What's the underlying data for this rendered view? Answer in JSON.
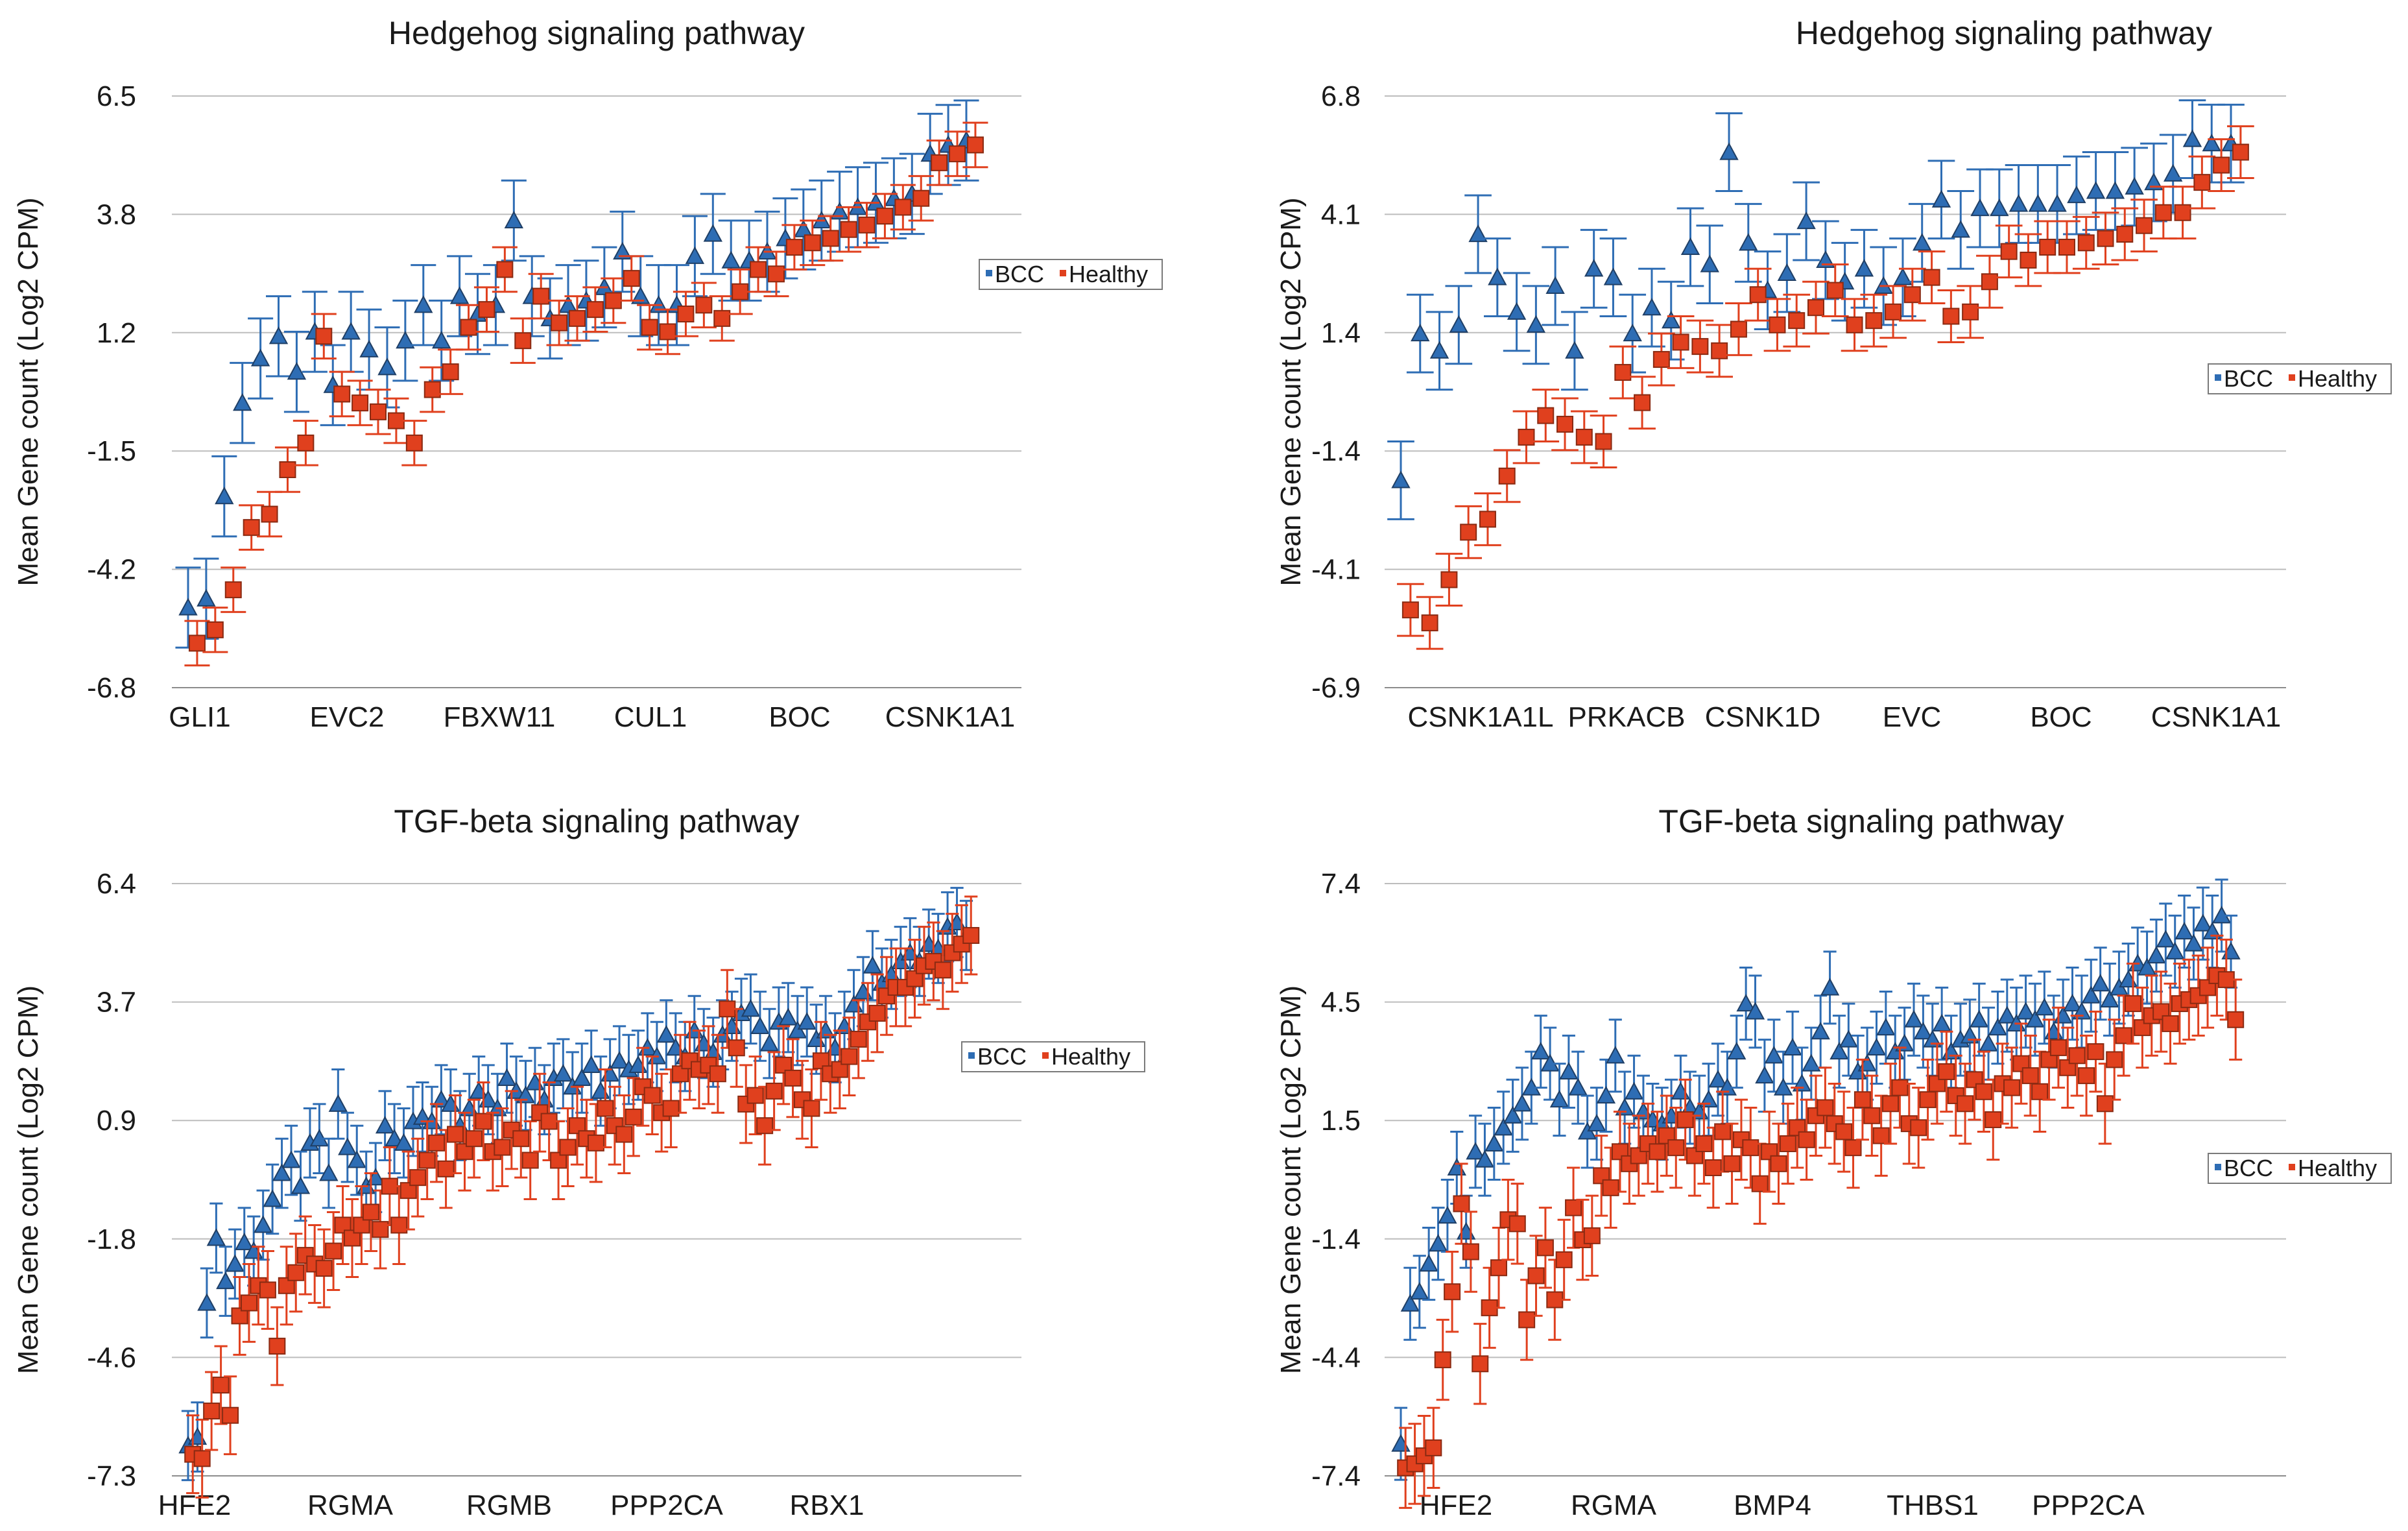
{
  "colors": {
    "bcc": "#2E6DB4",
    "healthy": "#E0401E",
    "grid": "#BDBDBD",
    "axis": "#8C8C8C",
    "text": "#1a1a1a"
  },
  "legend": {
    "bcc": "BCC",
    "healthy": "Healthy"
  },
  "chart_data": [
    {
      "type": "scatter",
      "title": "Hedgehog signaling pathway",
      "ylabel": "Mean Gene count (Log2 CPM)",
      "yticks": [
        "6.5",
        "3.8",
        "1.2",
        "-1.5",
        "-4.2",
        "-6.8"
      ],
      "ylim": [
        -6.8,
        6.5
      ],
      "xcategories": [
        "GLI1",
        "EVC2",
        "FBXW11",
        "CUL1",
        "BOC",
        "CSNK1A1"
      ],
      "legend_position": "right",
      "n": 44,
      "series": [
        {
          "name": "BCC",
          "marker": "triangle",
          "err": 0.9,
          "values": [
            -5.0,
            -4.8,
            -2.5,
            -0.4,
            0.6,
            1.1,
            0.3,
            1.2,
            0.0,
            1.2,
            0.8,
            0.4,
            1.0,
            1.8,
            1.0,
            2.0,
            1.6,
            1.8,
            3.7,
            2.0,
            1.5,
            1.8,
            1.9,
            2.2,
            3.0,
            2.0,
            1.8,
            1.8,
            2.9,
            3.4,
            2.8,
            2.8,
            3.0,
            3.3,
            3.5,
            3.7,
            3.9,
            4.0,
            4.1,
            4.2,
            4.3,
            5.2,
            5.4,
            5.5
          ]
        },
        {
          "name": "Healthy",
          "marker": "square",
          "err": 0.5,
          "values": [
            -5.8,
            -5.5,
            -4.6,
            -3.2,
            -2.9,
            -1.9,
            -1.3,
            1.1,
            -0.2,
            -0.4,
            -0.6,
            -0.8,
            -1.3,
            -0.1,
            0.3,
            1.3,
            1.7,
            2.6,
            1.0,
            2.0,
            1.4,
            1.5,
            1.7,
            1.9,
            2.4,
            1.3,
            1.2,
            1.6,
            1.8,
            1.5,
            2.1,
            2.6,
            2.5,
            3.1,
            3.2,
            3.3,
            3.5,
            3.6,
            3.8,
            4.0,
            4.2,
            5.0,
            5.2,
            5.4
          ]
        }
      ]
    },
    {
      "type": "scatter",
      "title": "Hedgehog signaling pathway",
      "ylabel": "Mean Gene count (Log2 CPM)",
      "yticks": [
        "6.8",
        "4.1",
        "1.4",
        "-1.4",
        "-4.1",
        "-6.9"
      ],
      "ylim": [
        -6.9,
        6.8
      ],
      "xcategories": [
        "CSNK1A1L",
        "PRKACB",
        "CSNK1D",
        "EVC",
        "BOC",
        "CSNK1A1"
      ],
      "legend_position": "right",
      "n": 44,
      "series": [
        {
          "name": "BCC",
          "marker": "triangle",
          "err": 0.9,
          "values": [
            -2.1,
            1.3,
            0.9,
            1.5,
            3.6,
            2.6,
            1.8,
            1.5,
            2.4,
            0.9,
            2.8,
            2.6,
            1.3,
            1.9,
            1.6,
            3.3,
            2.9,
            5.5,
            3.4,
            2.3,
            2.7,
            3.9,
            3.0,
            2.5,
            2.8,
            2.4,
            2.6,
            3.4,
            4.4,
            3.7,
            4.2,
            4.2,
            4.3,
            4.3,
            4.3,
            4.5,
            4.6,
            4.6,
            4.7,
            4.8,
            5.0,
            5.8,
            5.7,
            5.7
          ]
        },
        {
          "name": "Healthy",
          "marker": "square",
          "err": 0.6,
          "values": [
            -5.1,
            -5.4,
            -4.4,
            -3.3,
            -3.0,
            -2.0,
            -1.1,
            -0.6,
            -0.8,
            -1.1,
            -1.2,
            0.4,
            -0.3,
            0.7,
            1.1,
            1.0,
            0.9,
            1.4,
            2.2,
            1.5,
            1.6,
            1.9,
            2.3,
            1.5,
            1.6,
            1.8,
            2.2,
            2.6,
            1.7,
            1.8,
            2.5,
            3.2,
            3.0,
            3.3,
            3.3,
            3.4,
            3.5,
            3.6,
            3.8,
            4.1,
            4.1,
            4.8,
            5.2,
            5.5
          ]
        }
      ]
    },
    {
      "type": "scatter",
      "title": "TGF-beta signaling pathway",
      "ylabel": "Mean Gene count (Log2 CPM)",
      "yticks": [
        "6.4",
        "3.7",
        "0.9",
        "-1.8",
        "-4.6",
        "-7.3"
      ],
      "ylim": [
        -7.3,
        6.4
      ],
      "xcategories": [
        "HFE2",
        "RGMA",
        "RGMB",
        "PPP2CA",
        "RBX1"
      ],
      "legend_position": "right",
      "n": 84,
      "series": [
        {
          "name": "BCC",
          "marker": "triangle",
          "err": 0.8,
          "values": [
            -6.6,
            -6.4,
            -3.3,
            -1.8,
            -2.8,
            -2.4,
            -1.9,
            -2.1,
            -1.5,
            -0.9,
            -0.3,
            0.0,
            -0.6,
            0.4,
            0.5,
            -0.3,
            1.3,
            0.3,
            0.0,
            -0.6,
            -0.4,
            0.8,
            0.5,
            0.4,
            0.9,
            1.0,
            0.9,
            1.4,
            1.3,
            0.8,
            1.2,
            1.6,
            1.4,
            1.2,
            1.9,
            1.6,
            1.5,
            1.8,
            1.4,
            1.9,
            2.0,
            1.7,
            1.9,
            2.2,
            1.6,
            2.0,
            2.3,
            2.1,
            2.2,
            2.6,
            2.4,
            2.9,
            2.6,
            2.4,
            3.0,
            2.7,
            2.5,
            2.9,
            3.1,
            3.4,
            3.5,
            3.1,
            2.7,
            3.2,
            3.3,
            3.0,
            3.2,
            2.8,
            3.0,
            2.6,
            3.1,
            3.6,
            3.9,
            4.5,
            4.1,
            4.3,
            4.6,
            4.8,
            4.6,
            5.0,
            4.9,
            5.4,
            5.5,
            5.2
          ]
        },
        {
          "name": "Healthy",
          "marker": "square",
          "err": 0.9,
          "values": [
            -6.8,
            -6.9,
            -5.8,
            -5.2,
            -5.9,
            -3.6,
            -3.3,
            -2.9,
            -3.0,
            -4.3,
            -2.9,
            -2.6,
            -2.2,
            -2.4,
            -2.5,
            -2.1,
            -1.5,
            -1.8,
            -1.5,
            -1.2,
            -1.6,
            -0.6,
            -1.5,
            -0.7,
            -0.4,
            0.0,
            0.4,
            -0.2,
            0.6,
            0.2,
            0.5,
            0.9,
            0.2,
            0.3,
            0.7,
            0.5,
            0.0,
            1.1,
            0.9,
            0.0,
            0.3,
            0.8,
            0.5,
            0.4,
            1.2,
            0.8,
            0.6,
            1.0,
            1.7,
            1.5,
            1.1,
            1.2,
            2.0,
            2.3,
            2.1,
            2.2,
            2.0,
            3.5,
            2.6,
            1.3,
            1.5,
            0.8,
            1.6,
            2.2,
            1.9,
            1.4,
            1.2,
            2.3,
            2.0,
            2.1,
            2.4,
            2.8,
            3.2,
            3.4,
            3.8,
            4.0,
            4.0,
            4.2,
            4.5,
            4.6,
            4.4,
            4.8,
            5.0,
            5.2
          ]
        }
      ]
    },
    {
      "type": "scatter",
      "title": "TGF-beta signaling pathway",
      "ylabel": "Mean Gene count (Log2 CPM)",
      "yticks": [
        "7.4",
        "4.5",
        "1.5",
        "-1.4",
        "-4.4",
        "-7.4"
      ],
      "ylim": [
        -7.4,
        7.4
      ],
      "xcategories": [
        "HFE2",
        "RGMA",
        "BMP4",
        "THBS1",
        "PPP2CA"
      ],
      "legend_position": "right",
      "n": 90,
      "series": [
        {
          "name": "BCC",
          "marker": "triangle",
          "err": 0.9,
          "values": [
            -6.6,
            -3.1,
            -2.8,
            -2.1,
            -1.6,
            -0.9,
            0.3,
            -1.3,
            0.7,
            0.5,
            0.9,
            1.3,
            1.6,
            1.9,
            2.3,
            3.2,
            2.9,
            2.0,
            2.7,
            2.3,
            1.2,
            1.4,
            2.1,
            3.1,
            1.8,
            2.2,
            1.7,
            1.5,
            1.4,
            1.6,
            2.2,
            1.8,
            1.7,
            2.0,
            2.5,
            2.3,
            3.2,
            4.4,
            4.2,
            2.6,
            3.1,
            2.3,
            3.3,
            2.4,
            2.9,
            3.7,
            4.8,
            3.2,
            3.5,
            2.7,
            2.9,
            3.3,
            3.8,
            3.2,
            3.4,
            4.0,
            3.7,
            3.5,
            3.9,
            3.2,
            3.5,
            3.6,
            4.0,
            3.4,
            3.8,
            4.1,
            3.9,
            4.2,
            4.0,
            4.3,
            3.7,
            4.1,
            4.4,
            4.2,
            4.6,
            4.9,
            4.5,
            4.8,
            5.0,
            5.4,
            5.3,
            5.6,
            6.0,
            5.7,
            6.2,
            5.9,
            6.4,
            6.2,
            6.6,
            5.7
          ]
        },
        {
          "name": "Healthy",
          "marker": "square",
          "err": 1.0,
          "values": [
            -7.2,
            -7.1,
            -6.9,
            -6.7,
            -4.5,
            -2.8,
            -0.6,
            -1.8,
            -4.6,
            -3.2,
            -2.2,
            -1.0,
            -1.1,
            -3.5,
            -2.4,
            -1.7,
            -3.0,
            -2.0,
            -0.7,
            -1.5,
            -1.4,
            0.1,
            -0.2,
            0.7,
            0.4,
            0.6,
            0.9,
            0.7,
            1.1,
            0.8,
            1.5,
            0.6,
            0.9,
            0.3,
            1.2,
            0.4,
            1.0,
            0.8,
            -0.1,
            0.7,
            0.4,
            0.9,
            1.3,
            1.0,
            1.6,
            1.8,
            1.4,
            1.2,
            0.8,
            2.0,
            1.6,
            1.1,
            1.9,
            2.3,
            1.4,
            1.3,
            2.0,
            2.4,
            2.7,
            2.1,
            1.9,
            2.5,
            2.2,
            1.5,
            2.4,
            2.3,
            2.9,
            2.6,
            2.2,
            3.0,
            3.3,
            2.8,
            3.1,
            2.6,
            3.2,
            1.9,
            3.0,
            3.6,
            4.4,
            3.8,
            4.1,
            4.2,
            3.9,
            4.4,
            4.5,
            4.6,
            4.8,
            5.1,
            5.0,
            4.0
          ]
        }
      ]
    }
  ]
}
